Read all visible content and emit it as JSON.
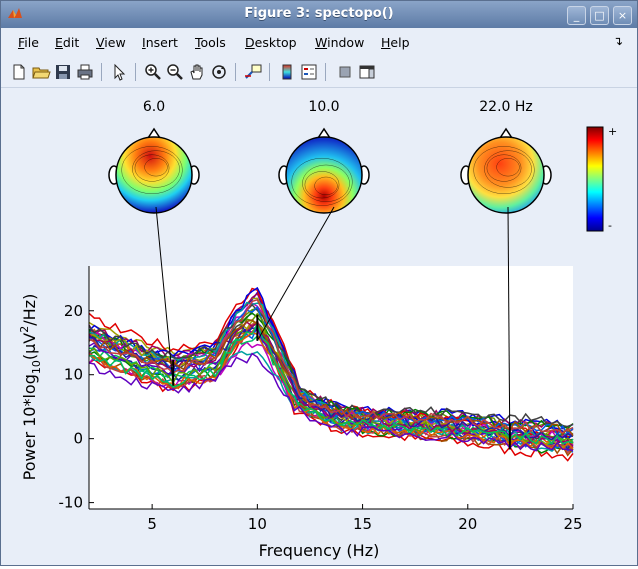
{
  "window": {
    "title": "Figure 3: spectopo()"
  },
  "window_controls": {
    "minimize": "_",
    "maximize": "□",
    "close": "×"
  },
  "menu": [
    {
      "pre": "",
      "u": "F",
      "post": "ile"
    },
    {
      "pre": "",
      "u": "E",
      "post": "dit"
    },
    {
      "pre": "",
      "u": "V",
      "post": "iew"
    },
    {
      "pre": "",
      "u": "I",
      "post": "nsert"
    },
    {
      "pre": "",
      "u": "T",
      "post": "ools"
    },
    {
      "pre": "",
      "u": "D",
      "post": "esktop"
    },
    {
      "pre": "",
      "u": "W",
      "post": "indow"
    },
    {
      "pre": "",
      "u": "H",
      "post": "elp"
    }
  ],
  "toolbar": {
    "icons": [
      "new-file-icon",
      "open-folder-icon",
      "save-icon",
      "print-icon",
      "select-arrow-icon",
      "zoom-in-icon",
      "zoom-out-icon",
      "pan-hand-icon",
      "rotate-3d-icon",
      "data-cursor-icon",
      "colorbar-icon",
      "legend-icon",
      "hide-plot-tools-icon",
      "show-plot-tools-icon"
    ]
  },
  "colors": {
    "accent": "#5d7ba6",
    "window_bg": "#e8eef8",
    "plot_bg": "#ffffff"
  },
  "topo_maps": [
    {
      "label": "6.0",
      "freq": 6,
      "pattern": "frontal"
    },
    {
      "label": "10.0",
      "freq": 10,
      "pattern": "occipital"
    },
    {
      "label": "22.0 Hz",
      "freq": 22,
      "pattern": "frontal-broad"
    }
  ],
  "colorbar": {
    "plus": "+",
    "minus": "-"
  },
  "chart_data": {
    "type": "line",
    "xlabel": "Frequency (Hz)",
    "ylabel_main": "Power 10*log",
    "ylabel_sub": "10",
    "ylabel_mid": "(µV",
    "ylabel_sup": "2",
    "ylabel_end": "/Hz)",
    "xlim": [
      2,
      25
    ],
    "ylim": [
      -11,
      27
    ],
    "xticks": [
      5,
      10,
      15,
      20,
      25
    ],
    "yticks": [
      -10,
      0,
      10,
      20
    ],
    "markers": [
      6,
      10,
      22
    ],
    "grid": false,
    "series_count": 32,
    "key_frequencies_hz": [
      2,
      4,
      6,
      8,
      9,
      10,
      11,
      12,
      14,
      16,
      18,
      20,
      22,
      24,
      25
    ],
    "mean_power_db": [
      15,
      12.5,
      10.5,
      12,
      16,
      17.5,
      12,
      6,
      3,
      2.5,
      2,
      1.5,
      0.5,
      0,
      -0.5
    ]
  }
}
